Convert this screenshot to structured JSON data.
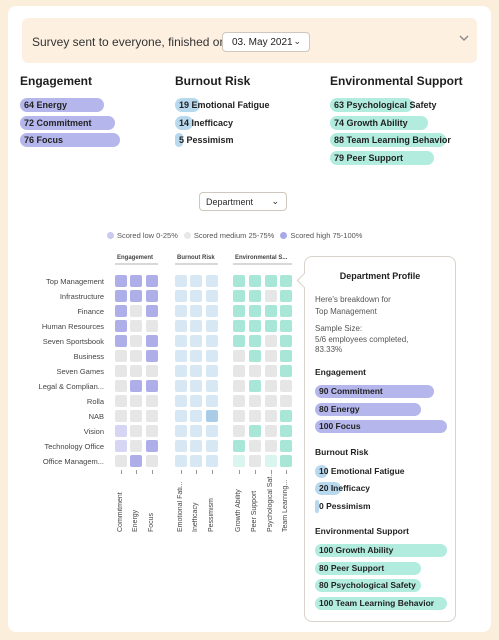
{
  "banner": {
    "text": "Survey sent to everyone, finished on",
    "date_value": "03. May 2021"
  },
  "summary": [
    {
      "title": "Engagement",
      "color": "#b5b6ec",
      "items": [
        {
          "label": "64 Energy",
          "value": 64
        },
        {
          "label": "72 Commitment",
          "value": 72
        },
        {
          "label": "76 Focus",
          "value": 76
        }
      ]
    },
    {
      "title": "Burnout Risk",
      "color": "#b8d8ee",
      "items": [
        {
          "label": "19 Emotional Fatigue",
          "value": 19
        },
        {
          "label": "14 Inefficacy",
          "value": 14
        },
        {
          "label": "5 Pessimism",
          "value": 5
        }
      ]
    },
    {
      "title": "Environmental Support",
      "color": "#b1ecdf",
      "items": [
        {
          "label": "63 Psychological Safety",
          "value": 63
        },
        {
          "label": "74 Growth Ability",
          "value": 74
        },
        {
          "label": "88 Team Learning Behavior",
          "value": 88
        },
        {
          "label": "79 Peer Support",
          "value": 79
        }
      ]
    }
  ],
  "group_select": {
    "value": "Department"
  },
  "legend": [
    {
      "label": "Scored low 0-25%",
      "color": "#c9c9f2"
    },
    {
      "label": "Scored medium 25-75%",
      "color": "#e8e8e8"
    },
    {
      "label": "Scored high 75-100%",
      "color": "#a9a9ea"
    }
  ],
  "heatmap": {
    "groups": [
      {
        "title": "Engagement",
        "columns": [
          "Commitment",
          "Energy",
          "Focus"
        ]
      },
      {
        "title": "Burnout Risk",
        "columns": [
          "Emotional Fatigue",
          "Inefficacy",
          "Pessimism"
        ]
      },
      {
        "title": "Environmental S...",
        "columns": [
          "Growth Ability",
          "Peer Support",
          "Psychological Safety",
          "Team Learning Behavior"
        ]
      }
    ],
    "column_labels": [
      "Commitment",
      "Energy",
      "Focus",
      "Emotional Fati...",
      "Inefficacy",
      "Pessimism",
      "Growth Ability",
      "Peer Support",
      "Psychological Saf...",
      "Team Learning..."
    ],
    "rows": [
      {
        "label": "Top Management",
        "levels": [
          "h",
          "h",
          "h",
          "m",
          "m",
          "m",
          "h",
          "h",
          "h",
          "h"
        ]
      },
      {
        "label": "Infrastructure",
        "levels": [
          "h",
          "h",
          "h",
          "m",
          "m",
          "m",
          "h",
          "h",
          "m",
          "h"
        ]
      },
      {
        "label": "Finance",
        "levels": [
          "h",
          "m",
          "h",
          "m",
          "m",
          "m",
          "h",
          "h",
          "h",
          "h"
        ]
      },
      {
        "label": "Human Resources",
        "levels": [
          "h",
          "m",
          "m",
          "m",
          "m",
          "m",
          "h",
          "h",
          "h",
          "h"
        ]
      },
      {
        "label": "Seven Sportsbook",
        "levels": [
          "h",
          "m",
          "h",
          "m",
          "m",
          "m",
          "h",
          "h",
          "m",
          "h"
        ]
      },
      {
        "label": "Business",
        "levels": [
          "m",
          "m",
          "h",
          "m",
          "m",
          "m",
          "m",
          "h",
          "m",
          "h"
        ]
      },
      {
        "label": "Seven Games",
        "levels": [
          "m",
          "m",
          "m",
          "m",
          "m",
          "m",
          "m",
          "m",
          "m",
          "h"
        ]
      },
      {
        "label": "Legal & Complian...",
        "levels": [
          "m",
          "h",
          "h",
          "m",
          "m",
          "m",
          "m",
          "h",
          "m",
          "m"
        ]
      },
      {
        "label": "Rolla",
        "levels": [
          "m",
          "m",
          "m",
          "m",
          "m",
          "m",
          "m",
          "m",
          "m",
          "m"
        ]
      },
      {
        "label": "NAB",
        "levels": [
          "m",
          "m",
          "m",
          "m",
          "m",
          "h",
          "m",
          "m",
          "m",
          "h"
        ]
      },
      {
        "label": "Vision",
        "levels": [
          "l",
          "m",
          "m",
          "m",
          "m",
          "m",
          "m",
          "h",
          "m",
          "h"
        ]
      },
      {
        "label": "Technology Office",
        "levels": [
          "l",
          "m",
          "h",
          "m",
          "m",
          "m",
          "h",
          "m",
          "m",
          "h"
        ]
      },
      {
        "label": "Office Managem...",
        "levels": [
          "m",
          "h",
          "m",
          "m",
          "m",
          "m",
          "l",
          "m",
          "l",
          "h"
        ]
      }
    ]
  },
  "profile": {
    "title": "Department Profile",
    "intro": "Here's breakdown for",
    "department": "Top Management",
    "sample_label": "Sample Size:",
    "sample_value": "5/6 employees completed, 83.33%",
    "sections": [
      {
        "title": "Engagement",
        "color": "#b5b6ec",
        "items": [
          {
            "label": "90 Commitment",
            "value": 90
          },
          {
            "label": "80 Energy",
            "value": 80
          },
          {
            "label": "100 Focus",
            "value": 100
          }
        ]
      },
      {
        "title": "Burnout Risk",
        "color": "#b8d8ee",
        "items": [
          {
            "label": "10 Emotional Fatigue",
            "value": 10
          },
          {
            "label": "20 Inefficacy",
            "value": 20
          },
          {
            "label": "0 Pessimism",
            "value": 0
          }
        ]
      },
      {
        "title": "Environmental Support",
        "color": "#b1ecdf",
        "items": [
          {
            "label": "100 Growth Ability",
            "value": 100
          },
          {
            "label": "80 Peer Support",
            "value": 80
          },
          {
            "label": "80 Psychological Safety",
            "value": 80
          },
          {
            "label": "100 Team Learning Behavior",
            "value": 100
          }
        ]
      }
    ]
  },
  "colors": {
    "engagement_high": "#aeaee9",
    "engagement_low": "#d6d6f4",
    "burnout_high": "#a9cce8",
    "burnout_medium": "#d7e8f4",
    "support_high": "#a8e7d8",
    "medium": "#e6e6e6"
  }
}
